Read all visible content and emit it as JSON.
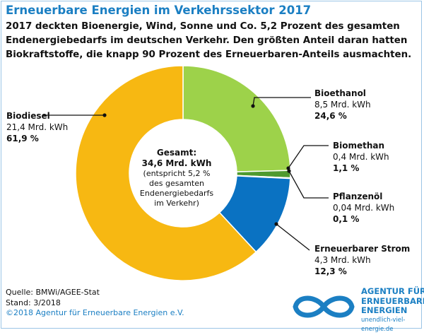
{
  "title": "Erneuerbare Energien im Verkehrssektor 2017",
  "subtitle_lines": [
    "2017 deckten Bioenergie, Wind, Sonne und Co. 5,2 Prozent des gesamten",
    "Endenergiebedarfs im deutschen Verkehr. Den größten Anteil daran hatten",
    "Biokraftstoffe, die knapp 90 Prozent des Erneuerbaren-Anteils ausmachten."
  ],
  "center": {
    "line1": "Gesamt:",
    "line2": "34,6 Mrd. kWh",
    "line3": "(entspricht 5,2 %",
    "line4": "des gesamten",
    "line5": "Endenergiebedarfs",
    "line6": "im Verkehr)"
  },
  "chart_data": {
    "type": "pie",
    "donut": true,
    "unit": "Mrd. kWh",
    "total": 34.6,
    "slices": [
      {
        "name": "Bioethanol",
        "value_label": "8,5 Mrd. kWh",
        "percent_label": "24,6 %",
        "value": 8.5,
        "percent": 24.6,
        "color": "#9dd24a"
      },
      {
        "name": "Biomethan",
        "value_label": "0,4 Mrd. kWh",
        "percent_label": "1,1 %",
        "value": 0.4,
        "percent": 1.1,
        "color": "#4e9a2f"
      },
      {
        "name": "Pflanzenöl",
        "value_label": "0,04 Mrd. kWh",
        "percent_label": "0,1 %",
        "value": 0.04,
        "percent": 0.1,
        "color": "#2a6e2a"
      },
      {
        "name": "Erneuerbarer Strom",
        "value_label": "4,3 Mrd. kWh",
        "percent_label": "12,3 %",
        "value": 4.3,
        "percent": 12.3,
        "color": "#0a72c2"
      },
      {
        "name": "Biodiesel",
        "value_label": "21,4 Mrd. kWh",
        "percent_label": "61,9 %",
        "value": 21.4,
        "percent": 61.9,
        "color": "#f7b812"
      }
    ]
  },
  "footer": {
    "source": "Quelle: BMWi/AGEE-Stat",
    "stand": "Stand: 3/2018",
    "copyright": "©2018 Agentur für Erneuerbare Energien e.V."
  },
  "logo": {
    "line1": "AGENTUR FÜR",
    "line2": "ERNEUERBARE",
    "line3": "ENERGIEN",
    "url": "unendlich-viel-energie.de",
    "color": "#1b7fc3"
  }
}
